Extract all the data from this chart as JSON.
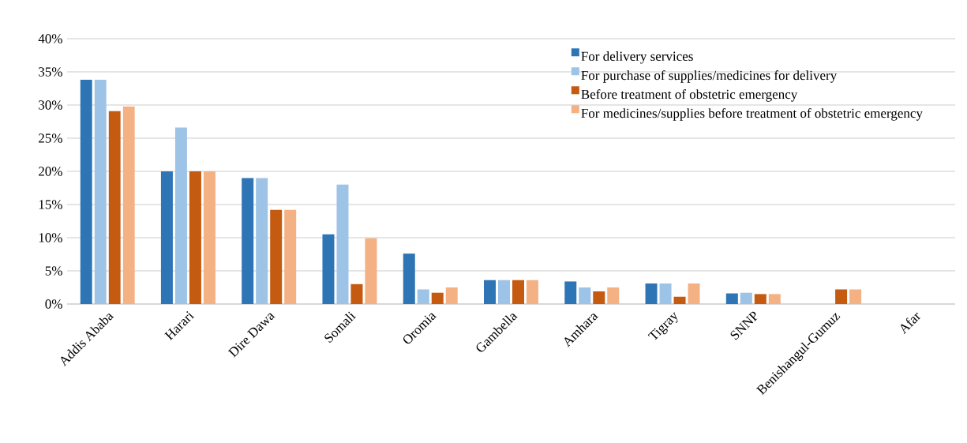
{
  "chart_data": {
    "type": "bar",
    "categories": [
      "Addis Ababa",
      "Harari",
      "Dire Dawa",
      "Somali",
      "Oromia",
      "Gambella",
      "Amhara",
      "Tigray",
      "SNNP",
      "Benishangul-Gumuz",
      "Afar"
    ],
    "series": [
      {
        "name": "For delivery services",
        "color": "#2e75b6",
        "values": [
          33.8,
          20,
          19.0,
          10.5,
          7.6,
          3.6,
          3.4,
          3.1,
          1.6,
          0,
          0
        ]
      },
      {
        "name": "For purchase of supplies/medicines for delivery",
        "color": "#9dc3e6",
        "values": [
          33.8,
          26.6,
          19.0,
          18.0,
          2.2,
          3.6,
          2.5,
          3.1,
          1.7,
          0,
          0
        ]
      },
      {
        "name": "Before treatment of obstetric emergency",
        "color": "#c55a11",
        "values": [
          29.1,
          20,
          14.2,
          3.0,
          1.7,
          3.6,
          1.9,
          1.1,
          1.5,
          2.2,
          0
        ]
      },
      {
        "name": "For medicines/supplies before treatment of obstetric emergency",
        "color": "#f4b183",
        "values": [
          29.8,
          20,
          14.2,
          9.9,
          2.5,
          3.6,
          2.5,
          3.1,
          1.5,
          2.2,
          0
        ]
      }
    ],
    "ylim": [
      0,
      40
    ],
    "yticks": [
      {
        "value": 0,
        "label": "0%"
      },
      {
        "value": 5,
        "label": "5%"
      },
      {
        "value": 10,
        "label": "10%"
      },
      {
        "value": 15,
        "label": "15%"
      },
      {
        "value": 20,
        "label": "20%"
      },
      {
        "value": 25,
        "label": "25%"
      },
      {
        "value": 30,
        "label": "30%"
      },
      {
        "value": 35,
        "label": "35%"
      },
      {
        "value": 40,
        "label": "40%"
      }
    ],
    "grid": "y",
    "legend": "top right"
  }
}
